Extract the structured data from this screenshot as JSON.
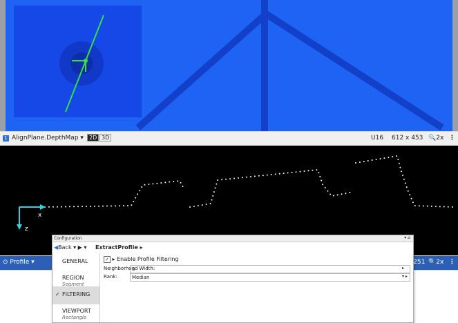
{
  "viewer": {
    "source": "AlignPlane.DepthMap",
    "view_modes": [
      "2D",
      "3D"
    ],
    "pixel_format": "U16",
    "dimensions": "612 x 453",
    "zoom": "2x"
  },
  "profile": {
    "axis_x": "x",
    "axis_z": "z",
    "source": "Profile",
    "dimensions": "x 251",
    "zoom": "2x"
  },
  "configuration": {
    "title": "Configuration",
    "back": "Back",
    "breadcrumb": "ExtractProfile",
    "nav": [
      {
        "label": "GENERAL"
      },
      {
        "label": "REGION",
        "sublabel": "Segment"
      },
      {
        "label": "FILTERING",
        "selected": true
      },
      {
        "label": "VIEWPORT",
        "sublabel": "Rectangle"
      }
    ],
    "enable_filtering": {
      "label": "Enable Profile Filtering",
      "checked": true
    },
    "fields": [
      {
        "label": "Neighborhood Width:",
        "value": "3"
      },
      {
        "label": "Rank:",
        "value": "Median"
      }
    ]
  }
}
